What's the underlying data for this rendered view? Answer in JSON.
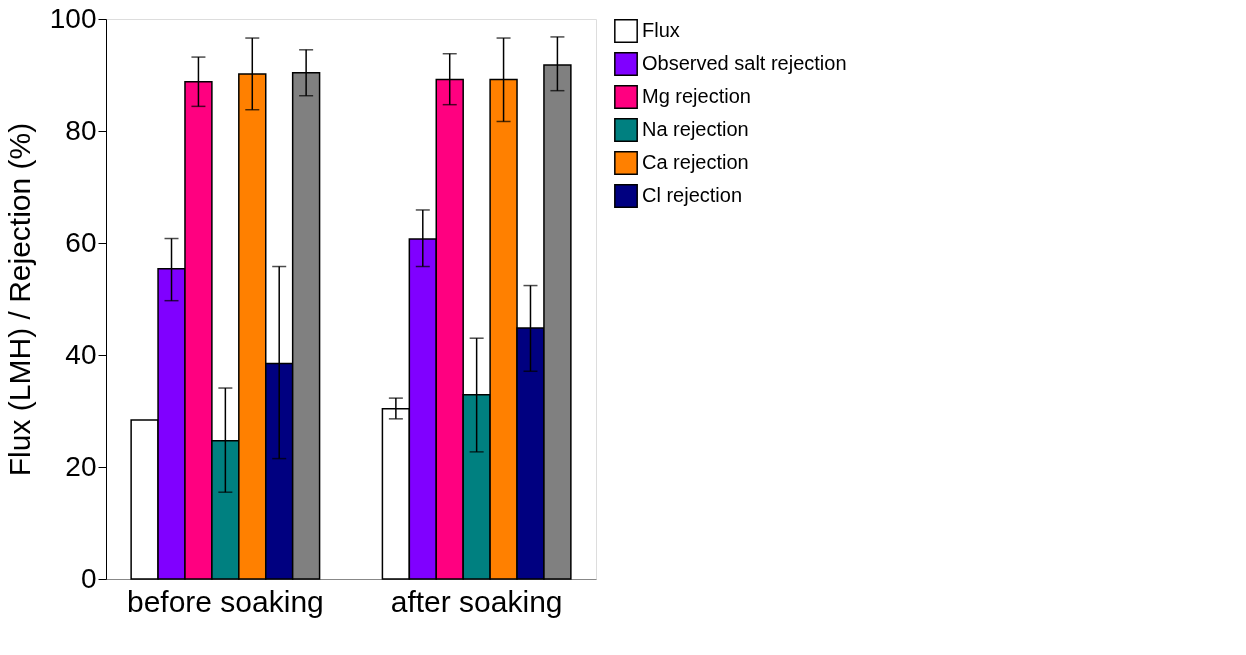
{
  "chart_data": {
    "type": "bar",
    "ylabel": "Flux (LMH) / Rejection (%)",
    "categories": [
      "before soaking",
      "after soaking"
    ],
    "series": [
      {
        "name": "Flux",
        "color": "#ffffff",
        "values": [
          28.4,
          30.4
        ],
        "errors": [
          null,
          [
            28.6,
            32.3
          ]
        ]
      },
      {
        "name": "Observed salt rejection",
        "color": "#8000ff",
        "values": [
          55.4,
          60.7
        ],
        "errors": [
          [
            49.7,
            60.8
          ],
          [
            55.8,
            65.9
          ]
        ]
      },
      {
        "name": "Mg rejection",
        "color": "#ff0080",
        "values": [
          88.8,
          89.2
        ],
        "errors": [
          [
            84.4,
            93.2
          ],
          [
            84.7,
            93.8
          ]
        ]
      },
      {
        "name": "Na rejection",
        "color": "#008080",
        "values": [
          24.7,
          32.9
        ],
        "errors": [
          [
            15.5,
            34.1
          ],
          [
            22.7,
            43.0
          ]
        ]
      },
      {
        "name": "Ca rejection",
        "color": "#ff8000",
        "values": [
          90.2,
          89.2
        ],
        "errors": [
          [
            83.8,
            96.6
          ],
          [
            81.7,
            96.6
          ]
        ]
      },
      {
        "name": "Cl rejection",
        "color": "#000080",
        "values": [
          38.5,
          44.8
        ],
        "errors": [
          [
            21.5,
            55.8
          ],
          [
            37.1,
            52.4
          ]
        ]
      },
      {
        "color": "#808080",
        "values": [
          90.4,
          91.8
        ],
        "errors": [
          [
            86.3,
            94.5
          ],
          [
            87.2,
            96.8
          ]
        ]
      }
    ],
    "ylim": [
      0,
      100
    ],
    "yticks": [
      0,
      20,
      40,
      60,
      80,
      100
    ],
    "grid": false,
    "legend": "right"
  }
}
